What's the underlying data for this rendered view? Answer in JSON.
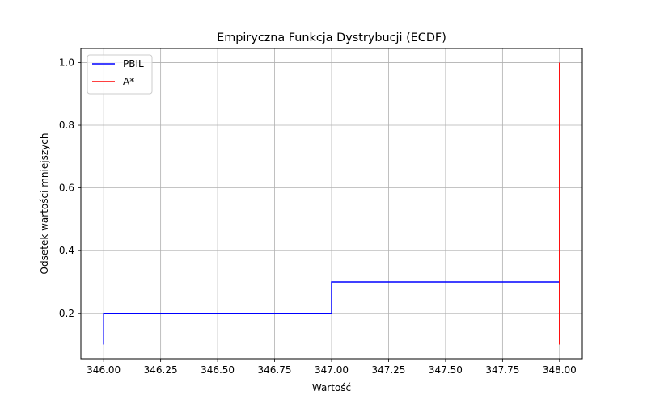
{
  "chart_data": {
    "type": "line",
    "step": "post",
    "title": "Empiryczna Funkcja Dystrybucji (ECDF)",
    "xlabel": "Wartość",
    "ylabel": "Odsetek wartości mniejszych",
    "xlim": [
      345.9,
      348.1
    ],
    "ylim": [
      0.055,
      1.045
    ],
    "xticks": [
      346.0,
      346.25,
      346.5,
      346.75,
      347.0,
      347.25,
      347.5,
      347.75,
      348.0
    ],
    "xtick_labels": [
      "346.00",
      "346.25",
      "346.50",
      "346.75",
      "347.00",
      "347.25",
      "347.50",
      "347.75",
      "348.00"
    ],
    "yticks": [
      0.2,
      0.4,
      0.6,
      0.8,
      1.0
    ],
    "ytick_labels": [
      "0.2",
      "0.4",
      "0.6",
      "0.8",
      "1.0"
    ],
    "grid": true,
    "legend_position": "top-left",
    "series": [
      {
        "name": "PBIL",
        "color": "#0000ff",
        "x": [
          346.0,
          346.0,
          347.0,
          348.0
        ],
        "y": [
          0.1,
          0.2,
          0.3,
          0.3
        ]
      },
      {
        "name": "A*",
        "color": "#ff0000",
        "x": [
          348.0,
          348.0
        ],
        "y": [
          0.1,
          1.0
        ]
      }
    ]
  }
}
